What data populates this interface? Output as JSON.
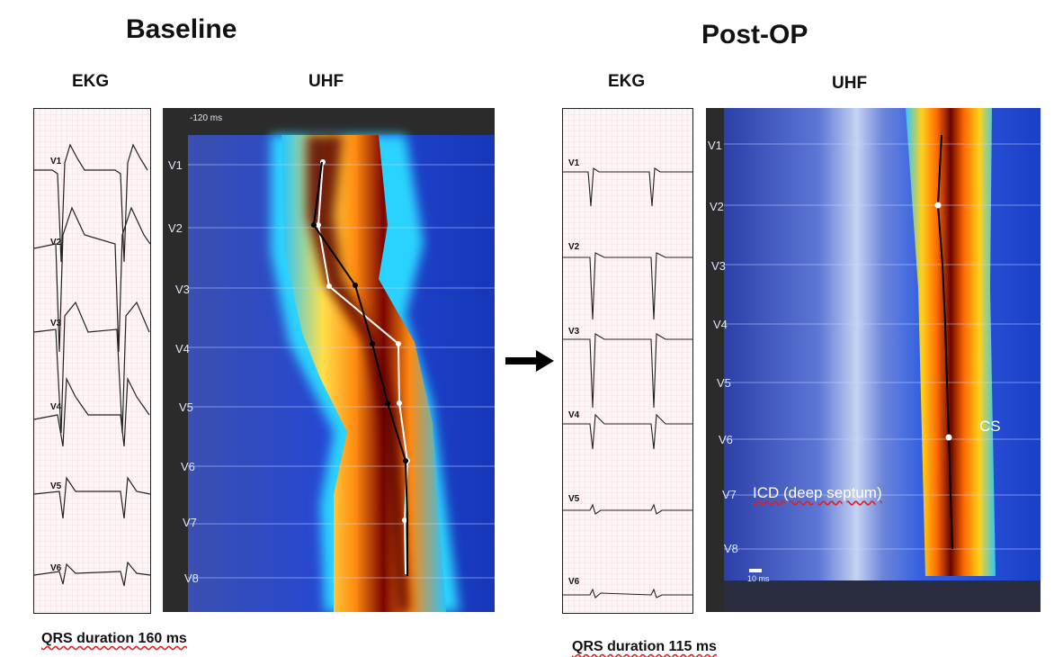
{
  "baseline": {
    "title": "Baseline",
    "ekg_label": "EKG",
    "uhf_label": "UHF",
    "qrs": "QRS duration 160 ms",
    "uhf_timescale": "-120 ms",
    "ekg_leads": [
      "V1",
      "V2",
      "V3",
      "V4",
      "V5",
      "V6"
    ],
    "uhf_leads": [
      "V1",
      "V2",
      "V3",
      "V4",
      "V5",
      "V6",
      "V7",
      "V8"
    ]
  },
  "postop": {
    "title": "Post-OP",
    "ekg_label": "EKG",
    "uhf_label": "UHF",
    "qrs": "QRS duration 115 ms",
    "uhf_timescale": "10 ms",
    "ekg_leads": [
      "V1",
      "V2",
      "V3",
      "V4",
      "V5",
      "V6"
    ],
    "uhf_leads": [
      "V1",
      "V2",
      "V3",
      "V4",
      "V5",
      "V6",
      "V7",
      "V8"
    ],
    "annotation_cs": "CS",
    "annotation_icd": "ICD (deep septum)"
  },
  "colors": {
    "uhf_blue": "#1f3fd0",
    "uhf_hot": "#8a0a00",
    "uhf_yellow": "#ffd21a",
    "arrow": "#000000"
  }
}
